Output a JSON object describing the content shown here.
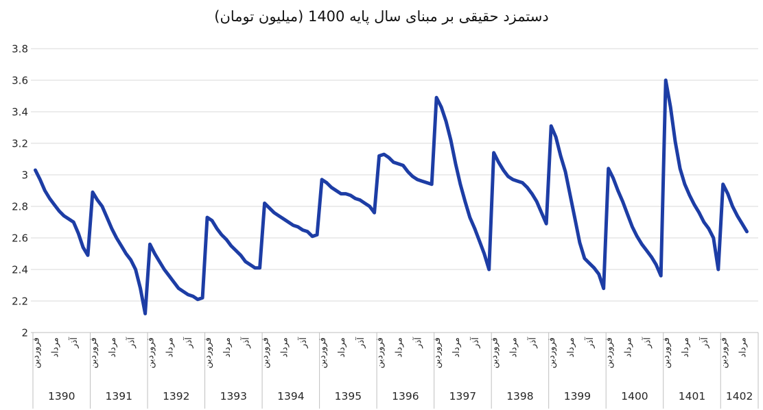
{
  "chart_data": {
    "type": "line",
    "title": "دستمزد حقیقی بر مبنای سال پایه 1400 (میلیون تومان)",
    "xlabel": "",
    "ylabel": "",
    "ylim": [
      2,
      3.8
    ],
    "y_ticks": [
      "2",
      "2.2",
      "2.4",
      "2.6",
      "2.8",
      "3",
      "3.2",
      "3.4",
      "3.6",
      "3.8"
    ],
    "grid": true,
    "legend": "none",
    "x_month_ticks": {
      "full_year_labels": [
        "فروردین",
        "مرداد",
        "آذر"
      ],
      "month_positions": [
        1,
        5,
        9
      ]
    },
    "series": [
      {
        "name": "دستمزد حقیقی",
        "color": "#1d3da5",
        "years": [
          {
            "year": "1390",
            "values": [
              3.03,
              2.97,
              2.9,
              2.85,
              2.81,
              2.77,
              2.74,
              2.72,
              2.7,
              2.63,
              2.54,
              2.49
            ]
          },
          {
            "year": "1391",
            "values": [
              2.89,
              2.84,
              2.8,
              2.73,
              2.66,
              2.6,
              2.55,
              2.5,
              2.46,
              2.4,
              2.28,
              2.12
            ]
          },
          {
            "year": "1392",
            "values": [
              2.56,
              2.5,
              2.45,
              2.4,
              2.36,
              2.32,
              2.28,
              2.26,
              2.24,
              2.23,
              2.21,
              2.22
            ]
          },
          {
            "year": "1393",
            "values": [
              2.73,
              2.71,
              2.66,
              2.62,
              2.59,
              2.55,
              2.52,
              2.49,
              2.45,
              2.43,
              2.41,
              2.41
            ]
          },
          {
            "year": "1394",
            "values": [
              2.82,
              2.79,
              2.76,
              2.74,
              2.72,
              2.7,
              2.68,
              2.67,
              2.65,
              2.64,
              2.61,
              2.62
            ]
          },
          {
            "year": "1395",
            "values": [
              2.97,
              2.95,
              2.92,
              2.9,
              2.88,
              2.88,
              2.87,
              2.85,
              2.84,
              2.82,
              2.8,
              2.76
            ]
          },
          {
            "year": "1396",
            "values": [
              3.12,
              3.13,
              3.11,
              3.08,
              3.07,
              3.06,
              3.02,
              2.99,
              2.97,
              2.96,
              2.95,
              2.94
            ]
          },
          {
            "year": "1397",
            "values": [
              3.49,
              3.43,
              3.34,
              3.22,
              3.07,
              2.94,
              2.83,
              2.73,
              2.66,
              2.58,
              2.5,
              2.4
            ]
          },
          {
            "year": "1398",
            "values": [
              3.14,
              3.08,
              3.03,
              2.99,
              2.97,
              2.96,
              2.95,
              2.92,
              2.88,
              2.83,
              2.76,
              2.69
            ]
          },
          {
            "year": "1399",
            "values": [
              3.31,
              3.24,
              3.12,
              3.02,
              2.87,
              2.72,
              2.57,
              2.47,
              2.44,
              2.41,
              2.37,
              2.28
            ]
          },
          {
            "year": "1400",
            "values": [
              3.04,
              2.98,
              2.9,
              2.83,
              2.75,
              2.67,
              2.61,
              2.56,
              2.52,
              2.48,
              2.43,
              2.36
            ]
          },
          {
            "year": "1401",
            "values": [
              3.6,
              3.43,
              3.21,
              3.04,
              2.94,
              2.87,
              2.81,
              2.76,
              2.7,
              2.66,
              2.6,
              2.4
            ]
          },
          {
            "year": "1402",
            "values": [
              2.94,
              2.88,
              2.8,
              2.74,
              2.69,
              2.64
            ],
            "months_labeled": [
              "فروردین",
              "مرداد"
            ]
          }
        ]
      }
    ],
    "colors": {
      "line": "#1d3da5",
      "gridline": "#d9d9d9",
      "axis": "#bfbfbf",
      "text": "#262626",
      "background": "#ffffff"
    }
  }
}
